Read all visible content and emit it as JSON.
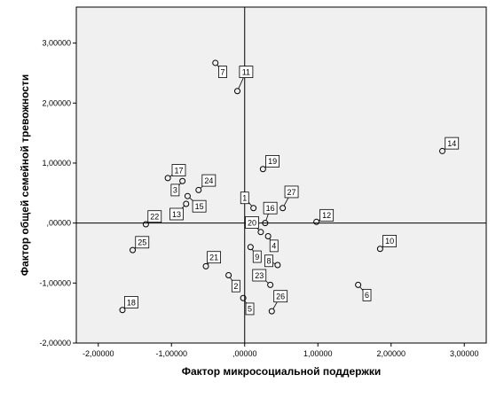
{
  "chart_data": {
    "type": "scatter",
    "xlabel": "Фактор микросоциальной поддержки",
    "ylabel": "Фактор общей семейной тревожности",
    "xlim": [
      -2.3,
      3.3
    ],
    "ylim": [
      -2.0,
      3.6
    ],
    "xticks": [
      -2,
      -1,
      0,
      1,
      2,
      3
    ],
    "yticks": [
      -2,
      -1,
      0,
      1,
      2,
      3
    ],
    "xtick_labels": [
      "-2,00000",
      "-1,00000",
      ",00000",
      "1,00000",
      "2,00000",
      "3,00000"
    ],
    "ytick_labels": [
      "-2,00000",
      "-1,00000",
      ",00000",
      "1,00000",
      "2,00000",
      "3,00000"
    ],
    "reference_lines": {
      "x": 0,
      "y": 0
    },
    "background": "#f0f0f0",
    "point_color": "#000000",
    "points": [
      {
        "label": "1",
        "x": 0.12,
        "y": 0.25,
        "lx": 0.0,
        "ly": 0.42
      },
      {
        "label": "2",
        "x": -0.22,
        "y": -0.87,
        "lx": -0.12,
        "ly": -1.05
      },
      {
        "label": "3",
        "x": -0.85,
        "y": 0.7,
        "lx": -0.95,
        "ly": 0.55
      },
      {
        "label": "4",
        "x": 0.32,
        "y": -0.22,
        "lx": 0.4,
        "ly": -0.38
      },
      {
        "label": "5",
        "x": -0.02,
        "y": -1.25,
        "lx": 0.07,
        "ly": -1.43
      },
      {
        "label": "6",
        "x": 1.55,
        "y": -1.03,
        "lx": 1.67,
        "ly": -1.2
      },
      {
        "label": "7",
        "x": -0.4,
        "y": 2.67,
        "lx": -0.3,
        "ly": 2.52
      },
      {
        "label": "8",
        "x": 0.45,
        "y": -0.7,
        "lx": 0.33,
        "ly": -0.63
      },
      {
        "label": "9",
        "x": 0.08,
        "y": -0.4,
        "lx": 0.17,
        "ly": -0.56
      },
      {
        "label": "10",
        "x": 1.85,
        "y": -0.43,
        "lx": 1.98,
        "ly": -0.3
      },
      {
        "label": "11",
        "x": -0.1,
        "y": 2.2,
        "lx": 0.02,
        "ly": 2.52
      },
      {
        "label": "12",
        "x": 0.98,
        "y": 0.02,
        "lx": 1.12,
        "ly": 0.13
      },
      {
        "label": "13",
        "x": -0.8,
        "y": 0.32,
        "lx": -0.93,
        "ly": 0.15
      },
      {
        "label": "14",
        "x": 2.7,
        "y": 1.2,
        "lx": 2.83,
        "ly": 1.33
      },
      {
        "label": "15",
        "x": -0.78,
        "y": 0.45,
        "lx": -0.62,
        "ly": 0.28
      },
      {
        "label": "16",
        "x": 0.28,
        "y": 0.0,
        "lx": 0.35,
        "ly": 0.25
      },
      {
        "label": "17",
        "x": -1.05,
        "y": 0.75,
        "lx": -0.9,
        "ly": 0.88
      },
      {
        "label": "18",
        "x": -1.67,
        "y": -1.45,
        "lx": -1.55,
        "ly": -1.32
      },
      {
        "label": "19",
        "x": 0.25,
        "y": 0.9,
        "lx": 0.38,
        "ly": 1.03
      },
      {
        "label": "20",
        "x": 0.22,
        "y": -0.15,
        "lx": 0.1,
        "ly": 0.01
      },
      {
        "label": "21",
        "x": -0.53,
        "y": -0.72,
        "lx": -0.42,
        "ly": -0.57
      },
      {
        "label": "22",
        "x": -1.35,
        "y": -0.02,
        "lx": -1.23,
        "ly": 0.11
      },
      {
        "label": "23",
        "x": 0.35,
        "y": -1.03,
        "lx": 0.2,
        "ly": -0.87
      },
      {
        "label": "24",
        "x": -0.63,
        "y": 0.55,
        "lx": -0.49,
        "ly": 0.71
      },
      {
        "label": "25",
        "x": -1.53,
        "y": -0.45,
        "lx": -1.4,
        "ly": -0.32
      },
      {
        "label": "26",
        "x": 0.37,
        "y": -1.47,
        "lx": 0.49,
        "ly": -1.22
      },
      {
        "label": "27",
        "x": 0.52,
        "y": 0.25,
        "lx": 0.64,
        "ly": 0.52
      }
    ]
  }
}
